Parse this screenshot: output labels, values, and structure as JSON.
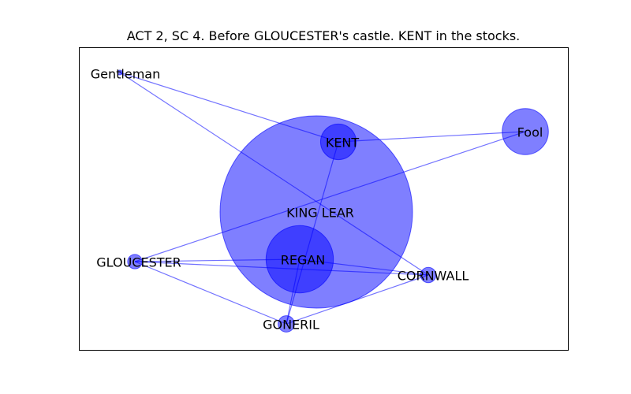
{
  "title": "ACT 2, SC 4. Before GLOUCESTER's castle. KENT in the stocks.",
  "colors": {
    "node": "#0000ff",
    "edge": "#0000ff",
    "frame": "#000000"
  },
  "graph": {
    "nodes": [
      {
        "id": "KING LEAR",
        "label": "KING LEAR",
        "size": 1.0
      },
      {
        "id": "REGAN",
        "label": "REGAN",
        "size": 0.35
      },
      {
        "id": "Fool",
        "label": "Fool",
        "size": 0.24
      },
      {
        "id": "KENT",
        "label": "KENT",
        "size": 0.185
      },
      {
        "id": "GLOUCESTER",
        "label": "GLOUCESTER",
        "size": 0.075
      },
      {
        "id": "CORNWALL",
        "label": "CORNWALL",
        "size": 0.08
      },
      {
        "id": "GONERIL",
        "label": "GONERIL",
        "size": 0.085
      },
      {
        "id": "Gentleman",
        "label": "Gentleman",
        "size": 0.02
      }
    ],
    "edges": [
      [
        "Gentleman",
        "KENT"
      ],
      [
        "Gentleman",
        "CORNWALL"
      ],
      [
        "KENT",
        "Fool"
      ],
      [
        "KENT",
        "GONERIL"
      ],
      [
        "Fool",
        "GLOUCESTER"
      ],
      [
        "GLOUCESTER",
        "REGAN"
      ],
      [
        "GLOUCESTER",
        "CORNWALL"
      ],
      [
        "GLOUCESTER",
        "GONERIL"
      ],
      [
        "REGAN",
        "CORNWALL"
      ],
      [
        "REGAN",
        "GONERIL"
      ],
      [
        "GONERIL",
        "CORNWALL"
      ]
    ]
  }
}
